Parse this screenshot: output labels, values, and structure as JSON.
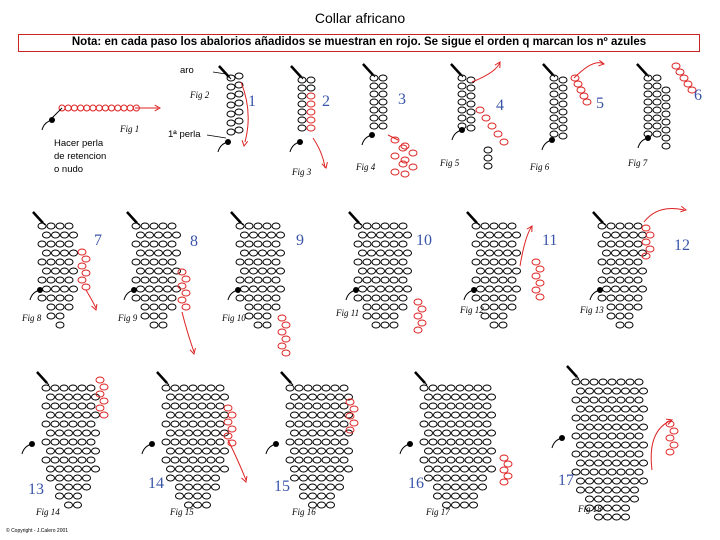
{
  "title": "Collar africano",
  "note": "Nota: en cada paso los abalorios añadidos se muestran en rojo. Se sigue el orden q marcan los nº azules",
  "annotations": {
    "aro": "aro",
    "primera_perla": "1ª perla",
    "hacer_perla": [
      "Hacer perla",
      "de retencion",
      "o nudo"
    ]
  },
  "copyright": "© Copyright - J.Calero 2001",
  "colors": {
    "new_beads": "#dd2222",
    "step_numbers": "#3a55a8",
    "beads": "#000000"
  },
  "figures": [
    {
      "fig": "Fig 1"
    },
    {
      "fig": "Fig 2",
      "step": "1"
    },
    {
      "fig": "Fig 3",
      "step": "2"
    },
    {
      "fig": "Fig 4",
      "step": "3"
    },
    {
      "fig": "Fig 5",
      "step": "4"
    },
    {
      "fig": "Fig 6",
      "step": "5"
    },
    {
      "fig": "Fig 7",
      "step": "6"
    },
    {
      "fig": "Fig 8",
      "step": "7"
    },
    {
      "fig": "Fig 9",
      "step": "8"
    },
    {
      "fig": "Fig 10",
      "step": "9"
    },
    {
      "fig": "Fig 11",
      "step": "10"
    },
    {
      "fig": "Fig 12",
      "step": "11"
    },
    {
      "fig": "Fig 13",
      "step": "12"
    },
    {
      "fig": "Fig 14",
      "step": "13"
    },
    {
      "fig": "Fig 15",
      "step": "14"
    },
    {
      "fig": "Fig 16",
      "step": "15"
    },
    {
      "fig": "Fig 17",
      "step": "16"
    },
    {
      "fig": "Fig 18",
      "step": "17"
    }
  ]
}
